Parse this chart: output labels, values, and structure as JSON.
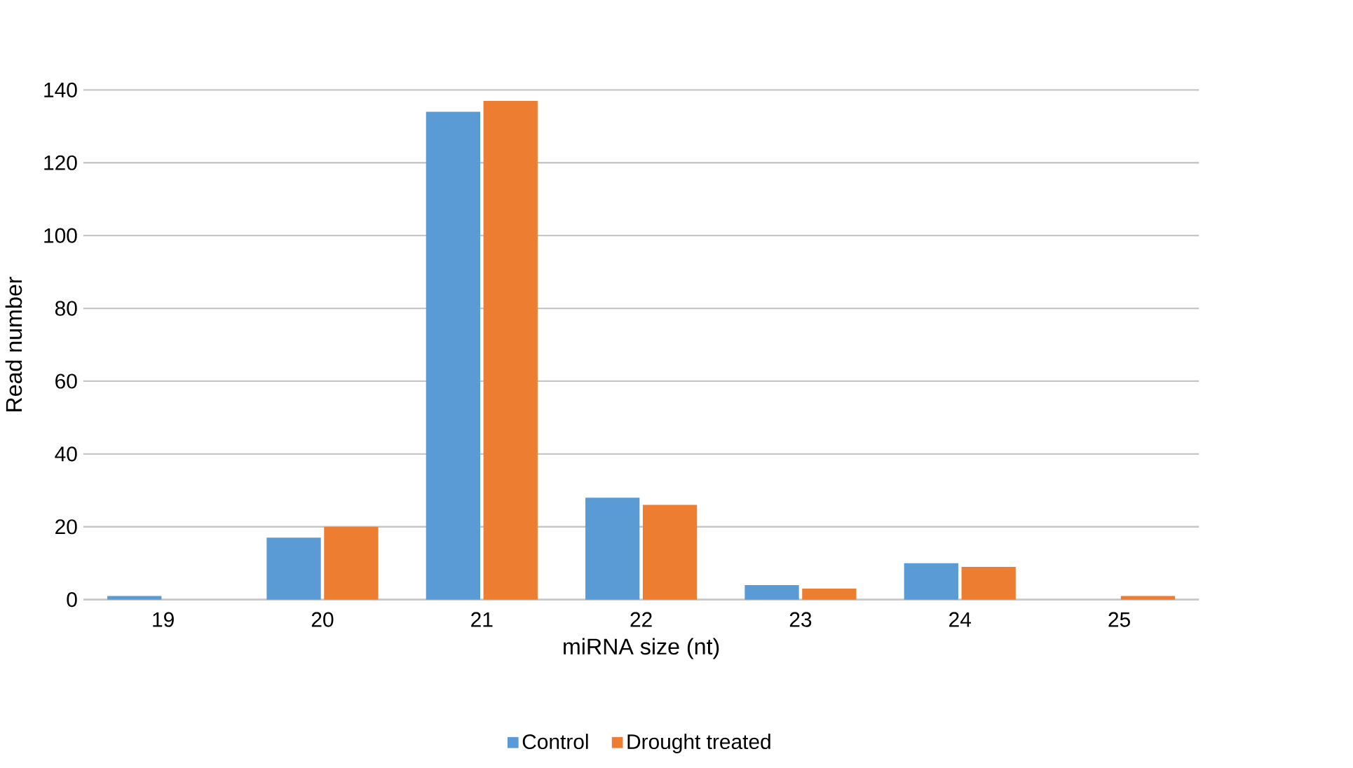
{
  "chart_data": {
    "type": "bar",
    "xlabel": "miRNA size (nt)",
    "ylabel": "Read number",
    "categories": [
      "19",
      "20",
      "21",
      "22",
      "23",
      "24",
      "25"
    ],
    "series": [
      {
        "name": "Control",
        "color": "#5b9bd5",
        "values": [
          1,
          17,
          134,
          28,
          4,
          10,
          0
        ]
      },
      {
        "name": "Drought treated",
        "color": "#ed7d31",
        "values": [
          0,
          20,
          137,
          26,
          3,
          9,
          1
        ]
      }
    ],
    "ylim": [
      0,
      140
    ],
    "yticks": [
      0,
      20,
      40,
      60,
      80,
      100,
      120,
      140
    ],
    "grid": "y",
    "legend": "bottom"
  }
}
